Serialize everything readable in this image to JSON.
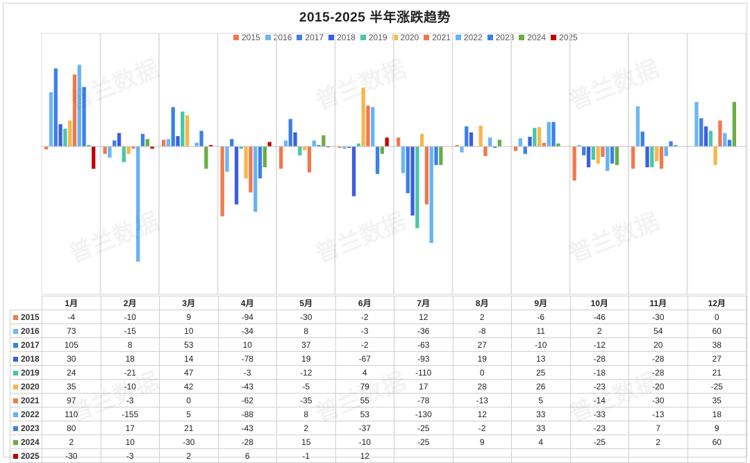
{
  "chart_data": {
    "type": "bar",
    "title": "2015-2025 半年涨跌趋势",
    "categories": [
      "1月",
      "2月",
      "3月",
      "4月",
      "5月",
      "6月",
      "7月",
      "8月",
      "9月",
      "10月",
      "11月",
      "12月"
    ],
    "ylim": [
      -160,
      120
    ],
    "grid": false,
    "legend_position": "top",
    "series": [
      {
        "name": "2015",
        "color": "#F07A4E",
        "values": [
          -4,
          -10,
          9,
          -94,
          -30,
          -2,
          12,
          2,
          -6,
          -46,
          -30,
          0
        ]
      },
      {
        "name": "2016",
        "color": "#6EB6F5",
        "values": [
          73,
          -15,
          10,
          -34,
          8,
          -3,
          -36,
          -8,
          11,
          2,
          54,
          60
        ]
      },
      {
        "name": "2017",
        "color": "#3D7FE6",
        "values": [
          105,
          8,
          53,
          10,
          37,
          -2,
          -63,
          27,
          -10,
          -12,
          20,
          38
        ]
      },
      {
        "name": "2018",
        "color": "#3A5FE0",
        "values": [
          30,
          18,
          14,
          -78,
          19,
          -67,
          -93,
          19,
          13,
          -28,
          -28,
          27
        ]
      },
      {
        "name": "2019",
        "color": "#49C6A8",
        "values": [
          24,
          -21,
          47,
          -3,
          -12,
          4,
          -110,
          0,
          25,
          -18,
          -28,
          21
        ]
      },
      {
        "name": "2020",
        "color": "#F8B64C",
        "values": [
          35,
          -10,
          42,
          -43,
          -5,
          79,
          17,
          28,
          26,
          -23,
          -20,
          -25
        ]
      },
      {
        "name": "2021",
        "color": "#F2784B",
        "values": [
          97,
          -3,
          0,
          -62,
          -35,
          55,
          -78,
          -13,
          5,
          -14,
          -30,
          35
        ]
      },
      {
        "name": "2022",
        "color": "#66B3F5",
        "values": [
          110,
          -155,
          5,
          -88,
          8,
          53,
          -130,
          12,
          33,
          -33,
          -13,
          18
        ]
      },
      {
        "name": "2023",
        "color": "#3B82E8",
        "values": [
          80,
          17,
          21,
          -43,
          2,
          -37,
          -25,
          -2,
          33,
          -23,
          7,
          9
        ]
      },
      {
        "name": "2024",
        "color": "#6AAE43",
        "values": [
          2,
          10,
          -30,
          -28,
          15,
          -10,
          -25,
          9,
          4,
          -25,
          2,
          60
        ]
      },
      {
        "name": "2025",
        "color": "#C00000",
        "values": [
          -30,
          -3,
          2,
          6,
          -1,
          12,
          null,
          null,
          null,
          null,
          null,
          null
        ]
      }
    ]
  },
  "watermark_text": "普兰数据"
}
